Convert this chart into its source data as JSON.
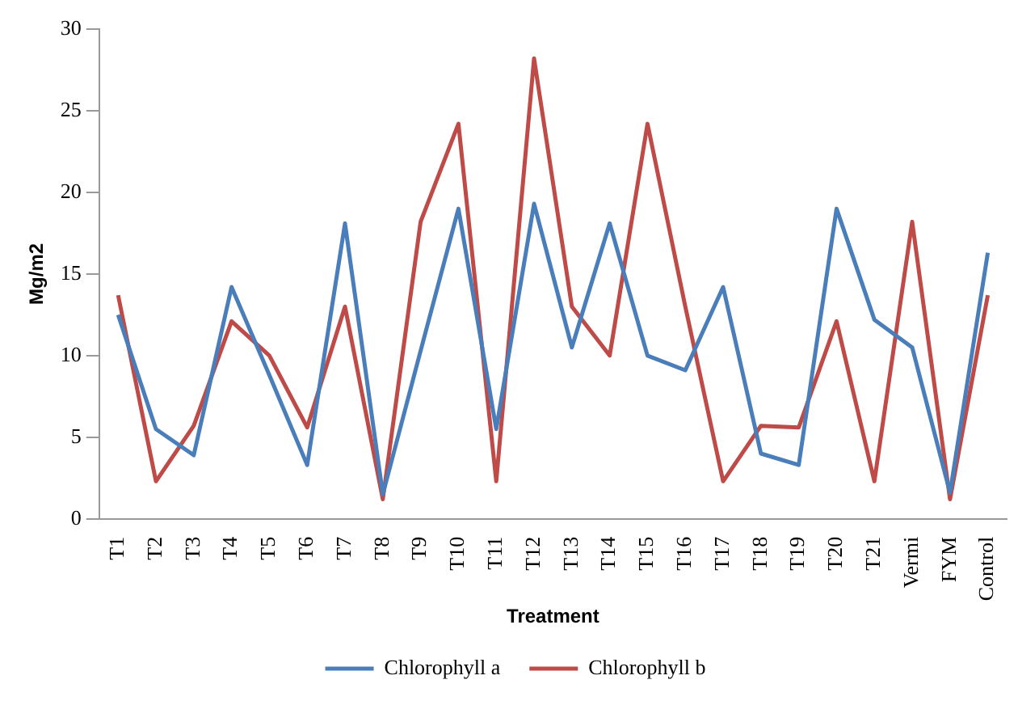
{
  "chart_data": {
    "type": "line",
    "xlabel": "Treatment",
    "ylabel": "Mg/m2",
    "categories": [
      "T1",
      "T2",
      "T3",
      "T4",
      "T5",
      "T6",
      "T7",
      "T8",
      "T9",
      "T10",
      "T11",
      "T12",
      "T13",
      "T14",
      "T15",
      "T16",
      "T17",
      "T18",
      "T19",
      "T20",
      "T21",
      "Vermi",
      "FYM",
      "Control"
    ],
    "series": [
      {
        "name": "Chlorophyll a",
        "color": "#4a7ebb",
        "values": [
          12.5,
          5.5,
          3.9,
          14.2,
          8.8,
          3.3,
          18.1,
          1.5,
          10.3,
          19,
          5.5,
          19.3,
          10.5,
          18.1,
          10,
          9.1,
          14.2,
          4,
          3.3,
          19,
          12.2,
          10.5,
          1.6,
          16.3
        ]
      },
      {
        "name": "Chlorophyll b",
        "color": "#be4b48",
        "values": [
          13.7,
          2.3,
          5.7,
          12.1,
          10,
          5.6,
          13,
          1.2,
          18.2,
          24.2,
          2.3,
          28.2,
          13,
          10,
          24.2,
          13,
          2.3,
          5.7,
          5.6,
          12.1,
          2.3,
          18.2,
          1.2,
          13.7
        ]
      }
    ],
    "ylim": [
      0,
      30
    ],
    "yticks": [
      0,
      5,
      10,
      15,
      20,
      25,
      30
    ],
    "grid": false,
    "legend": "bottom",
    "marker": "none",
    "line_style": "solid"
  }
}
